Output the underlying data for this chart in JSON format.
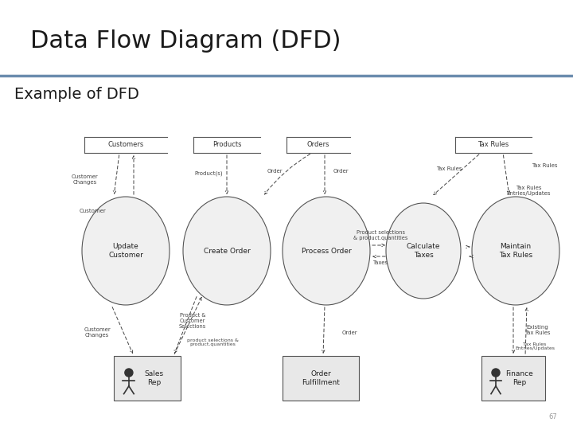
{
  "title": "Data Flow Diagram (DFD)",
  "subtitle": "Example of DFD",
  "title_fontsize": 22,
  "subtitle_fontsize": 14,
  "title_color": "#1a1a1a",
  "separator_color": "#6b8cae",
  "bg_color": "#ffffff",
  "slide_number": "67",
  "note_fontsize": 5.5,
  "proc_fontsize": 6.5,
  "ds_fontsize": 6.0,
  "ext_fontsize": 6.5
}
